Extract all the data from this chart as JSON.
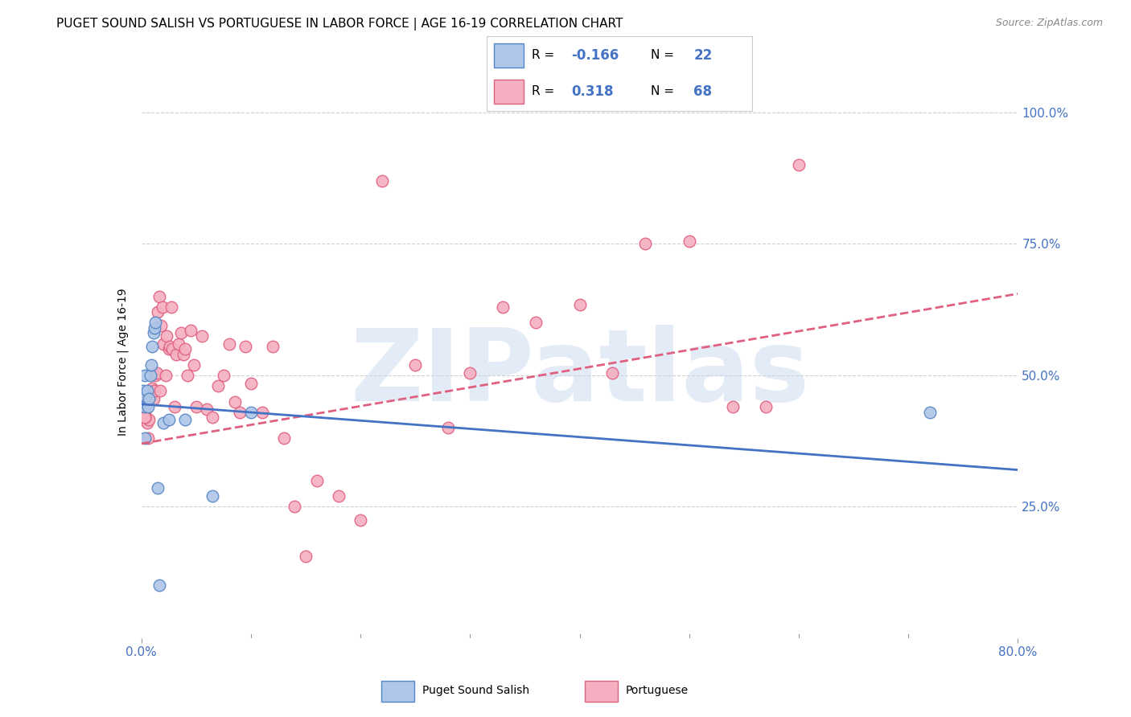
{
  "title": "PUGET SOUND SALISH VS PORTUGUESE IN LABOR FORCE | AGE 16-19 CORRELATION CHART",
  "source": "Source: ZipAtlas.com",
  "ylabel": "In Labor Force | Age 16-19",
  "x_min": 0.0,
  "x_max": 0.8,
  "y_min": 0.0,
  "y_max": 1.05,
  "grid_color": "#d0d0d0",
  "background_color": "#ffffff",
  "watermark": "ZIPatlas",
  "watermark_color": "#c8d8f0",
  "watermark_alpha": 0.5,
  "right_axis_color": "#4472c4",
  "x_tick_color": "#4472c4",
  "legend_R_color": "#4472c4",
  "series": [
    {
      "name": "Puget Sound Salish",
      "R": -0.166,
      "N": 22,
      "color_fill": "#aec6e8",
      "color_line": "#5585c5",
      "trend_line_color": "#4472c4",
      "trend_dash": false,
      "x": [
        0.002,
        0.003,
        0.003,
        0.004,
        0.005,
        0.006,
        0.007,
        0.008,
        0.009,
        0.01,
        0.011,
        0.012,
        0.013,
        0.015,
        0.016,
        0.02,
        0.025,
        0.04,
        0.065,
        0.1,
        0.72,
        0.003
      ],
      "y": [
        0.47,
        0.44,
        0.5,
        0.46,
        0.47,
        0.44,
        0.455,
        0.5,
        0.52,
        0.555,
        0.58,
        0.59,
        0.6,
        0.285,
        0.1,
        0.41,
        0.415,
        0.415,
        0.27,
        0.43,
        0.43,
        0.38
      ],
      "trend_x": [
        0.0,
        0.8
      ],
      "trend_y": [
        0.445,
        0.32
      ]
    },
    {
      "name": "Portuguese",
      "R": 0.318,
      "N": 68,
      "color_fill": "#f4b0c0",
      "color_line": "#e06080",
      "trend_line_color": "#e06080",
      "trend_dash": true,
      "x": [
        0.002,
        0.003,
        0.004,
        0.005,
        0.006,
        0.007,
        0.008,
        0.009,
        0.01,
        0.011,
        0.012,
        0.013,
        0.014,
        0.015,
        0.016,
        0.017,
        0.018,
        0.019,
        0.02,
        0.022,
        0.023,
        0.025,
        0.026,
        0.027,
        0.028,
        0.03,
        0.032,
        0.034,
        0.036,
        0.038,
        0.04,
        0.042,
        0.045,
        0.048,
        0.05,
        0.055,
        0.06,
        0.065,
        0.07,
        0.075,
        0.08,
        0.085,
        0.09,
        0.095,
        0.1,
        0.11,
        0.12,
        0.13,
        0.14,
        0.15,
        0.16,
        0.18,
        0.2,
        0.22,
        0.25,
        0.28,
        0.3,
        0.33,
        0.36,
        0.4,
        0.43,
        0.46,
        0.5,
        0.54,
        0.57,
        0.6,
        0.003,
        0.003
      ],
      "y": [
        0.415,
        0.43,
        0.455,
        0.41,
        0.38,
        0.415,
        0.46,
        0.47,
        0.475,
        0.455,
        0.47,
        0.5,
        0.505,
        0.62,
        0.65,
        0.47,
        0.595,
        0.63,
        0.56,
        0.5,
        0.575,
        0.55,
        0.555,
        0.63,
        0.55,
        0.44,
        0.54,
        0.56,
        0.58,
        0.54,
        0.55,
        0.5,
        0.585,
        0.52,
        0.44,
        0.575,
        0.435,
        0.42,
        0.48,
        0.5,
        0.56,
        0.45,
        0.43,
        0.555,
        0.485,
        0.43,
        0.555,
        0.38,
        0.25,
        0.155,
        0.3,
        0.27,
        0.225,
        0.87,
        0.52,
        0.4,
        0.505,
        0.63,
        0.6,
        0.635,
        0.505,
        0.75,
        0.755,
        0.44,
        0.44,
        0.9,
        0.42,
        0.42
      ],
      "trend_x": [
        0.0,
        0.8
      ],
      "trend_y": [
        0.37,
        0.655
      ]
    }
  ]
}
